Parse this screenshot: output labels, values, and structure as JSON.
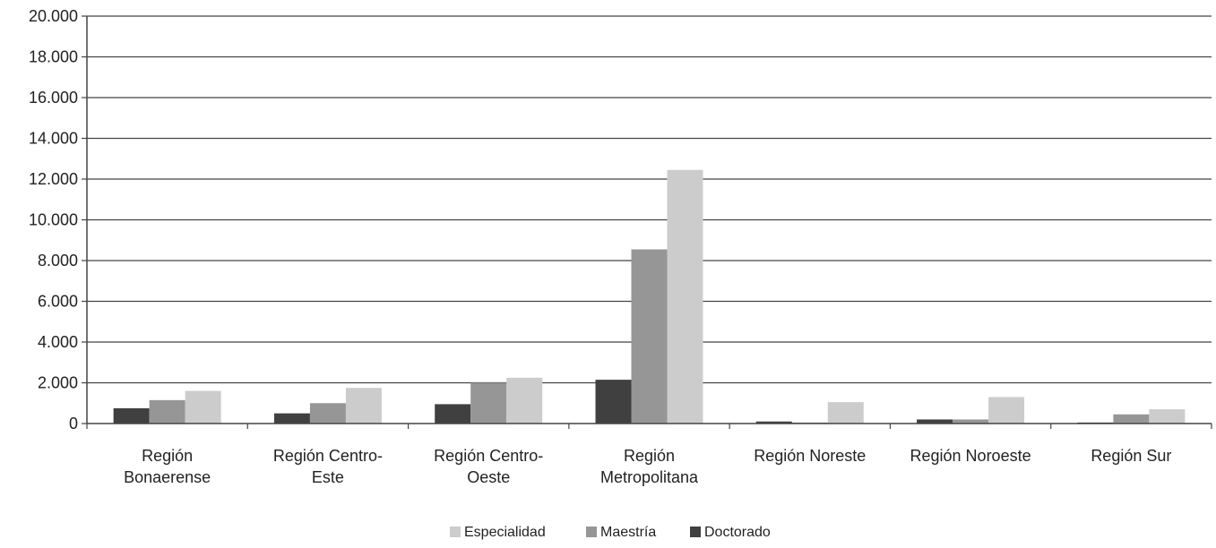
{
  "chart_data": {
    "type": "bar",
    "categories": [
      [
        "Región",
        "Bonaerense"
      ],
      [
        "Región Centro-",
        "Este"
      ],
      [
        "Región Centro-",
        "Oeste"
      ],
      [
        "Región",
        "Metropolitana"
      ],
      [
        "Región Noreste"
      ],
      [
        "Región Noroeste"
      ],
      [
        "Región Sur"
      ]
    ],
    "series": [
      {
        "name": "Doctorado",
        "color": "#404040",
        "values": [
          750,
          500,
          950,
          2150,
          100,
          200,
          50
        ]
      },
      {
        "name": "Maestría",
        "color": "#969696",
        "values": [
          1150,
          1000,
          2000,
          8550,
          50,
          200,
          450
        ]
      },
      {
        "name": "Especialidad",
        "color": "#cccccc",
        "values": [
          1600,
          1750,
          2250,
          12450,
          1050,
          1300,
          700
        ]
      }
    ],
    "legend_order": [
      "Especialidad",
      "Maestría",
      "Doctorado"
    ],
    "legend_position": "bottom",
    "ylim": [
      0,
      20000
    ],
    "y_ticks": [
      "0",
      "2.000",
      "4.000",
      "6.000",
      "8.000",
      "10.000",
      "12.000",
      "14.000",
      "16.000",
      "18.000",
      "20.000"
    ],
    "grid": true,
    "title": "",
    "xlabel": "",
    "ylabel": ""
  }
}
